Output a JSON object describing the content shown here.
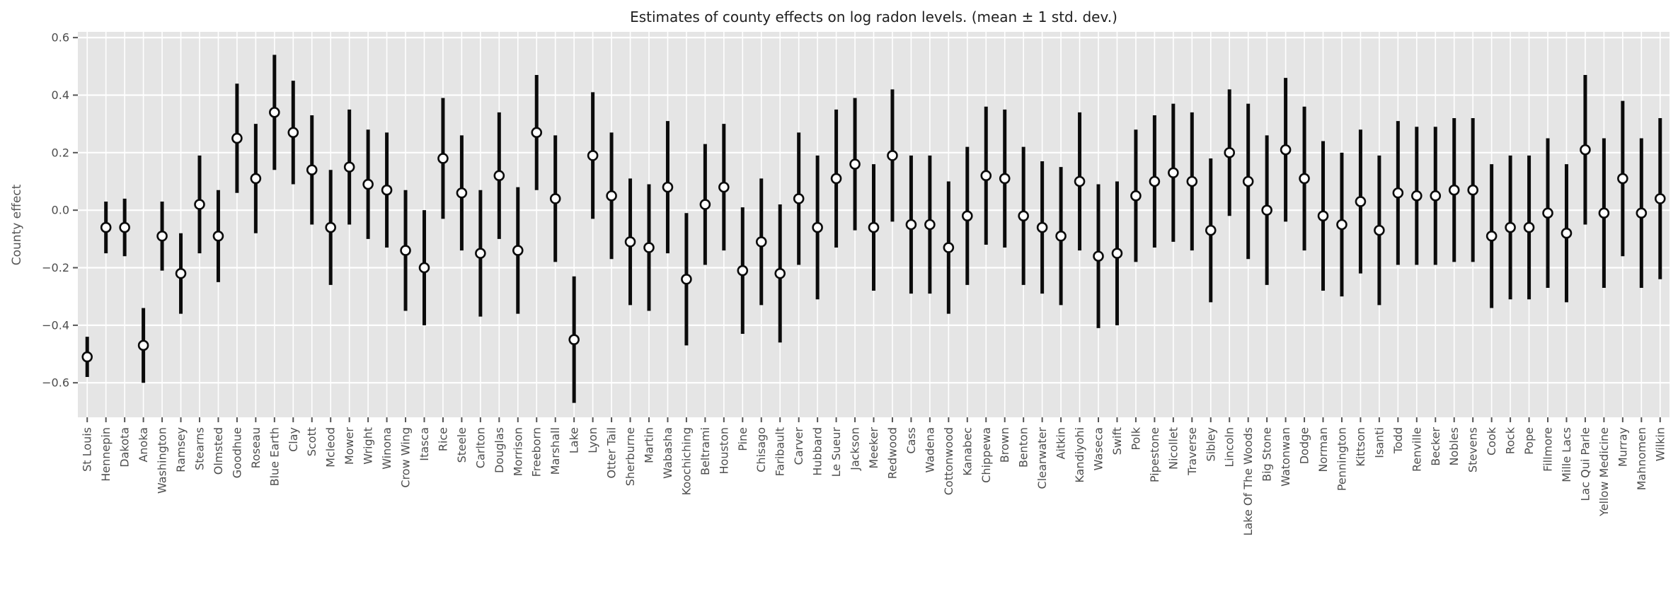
{
  "chart_data": {
    "type": "scatter",
    "title": "Estimates of county effects on log radon levels. (mean ± 1 std. dev.)",
    "xlabel": "",
    "ylabel": "County effect",
    "ylim": [
      -0.72,
      0.62
    ],
    "y_ticks": [
      -0.6,
      -0.4,
      -0.2,
      0.0,
      0.2,
      0.4,
      0.6
    ],
    "y_tick_labels": [
      "−0.6",
      "−0.4",
      "−0.2",
      "0.0",
      "0.2",
      "0.4",
      "0.6"
    ],
    "grid": true,
    "legend": false,
    "error_bars": "mean ± 1 std. dev.",
    "x_tick_rotation": 90,
    "categories": [
      "St Louis",
      "Hennepin",
      "Dakota",
      "Anoka",
      "Washington",
      "Ramsey",
      "Stearns",
      "Olmsted",
      "Goodhue",
      "Roseau",
      "Blue Earth",
      "Clay",
      "Scott",
      "Mcleod",
      "Mower",
      "Wright",
      "Winona",
      "Crow Wing",
      "Itasca",
      "Rice",
      "Steele",
      "Carlton",
      "Douglas",
      "Morrison",
      "Freeborn",
      "Marshall",
      "Lake",
      "Lyon",
      "Otter Tail",
      "Sherburne",
      "Martin",
      "Wabasha",
      "Koochiching",
      "Beltrami",
      "Houston",
      "Pine",
      "Chisago",
      "Faribault",
      "Carver",
      "Hubbard",
      "Le Sueur",
      "Jackson",
      "Meeker",
      "Redwood",
      "Cass",
      "Wadena",
      "Cottonwood",
      "Kanabec",
      "Chippewa",
      "Brown",
      "Benton",
      "Clearwater",
      "Aitkin",
      "Kandiyohi",
      "Waseca",
      "Swift",
      "Polk",
      "Pipestone",
      "Nicollet",
      "Traverse",
      "Sibley",
      "Lincoln",
      "Lake Of The Woods",
      "Big Stone",
      "Watonwan",
      "Dodge",
      "Norman",
      "Pennington",
      "Kittson",
      "Isanti",
      "Todd",
      "Renville",
      "Becker",
      "Nobles",
      "Stevens",
      "Cook",
      "Rock",
      "Pope",
      "Fillmore",
      "Mille Lacs",
      "Lac Qui Parle",
      "Yellow Medicine",
      "Murray",
      "Mahnomen",
      "Wilkin"
    ],
    "series": [
      {
        "name": "mean",
        "values": [
          -0.51,
          -0.06,
          -0.06,
          -0.47,
          -0.09,
          -0.22,
          0.02,
          -0.09,
          0.25,
          0.11,
          0.34,
          0.27,
          0.14,
          -0.06,
          0.15,
          0.09,
          0.07,
          -0.14,
          -0.2,
          0.18,
          0.06,
          -0.15,
          0.12,
          -0.14,
          0.27,
          0.04,
          -0.45,
          0.19,
          0.05,
          -0.11,
          -0.13,
          0.08,
          -0.24,
          0.02,
          0.08,
          -0.21,
          -0.11,
          -0.22,
          0.04,
          -0.06,
          0.11,
          0.16,
          -0.06,
          0.19,
          -0.05,
          -0.05,
          -0.13,
          -0.02,
          0.12,
          0.11,
          -0.02,
          -0.06,
          -0.09,
          0.1,
          -0.16,
          -0.15,
          0.05,
          0.1,
          0.13,
          0.1,
          -0.07,
          0.2,
          0.1,
          0.0,
          0.21,
          0.11,
          -0.02,
          -0.05,
          0.03,
          -0.07,
          0.06,
          0.05,
          0.05,
          0.07,
          0.07,
          -0.09,
          -0.06,
          -0.06,
          -0.01,
          -0.08,
          0.21,
          -0.01,
          0.11,
          -0.01,
          0.04
        ]
      },
      {
        "name": "std_dev",
        "values": [
          0.07,
          0.09,
          0.1,
          0.13,
          0.12,
          0.14,
          0.17,
          0.16,
          0.19,
          0.19,
          0.2,
          0.18,
          0.19,
          0.2,
          0.2,
          0.19,
          0.2,
          0.21,
          0.2,
          0.21,
          0.2,
          0.22,
          0.22,
          0.22,
          0.2,
          0.22,
          0.22,
          0.22,
          0.22,
          0.22,
          0.22,
          0.23,
          0.23,
          0.21,
          0.22,
          0.22,
          0.22,
          0.24,
          0.23,
          0.25,
          0.24,
          0.23,
          0.22,
          0.23,
          0.24,
          0.24,
          0.23,
          0.24,
          0.24,
          0.24,
          0.24,
          0.23,
          0.24,
          0.24,
          0.25,
          0.25,
          0.23,
          0.23,
          0.24,
          0.24,
          0.25,
          0.22,
          0.27,
          0.26,
          0.25,
          0.25,
          0.26,
          0.25,
          0.25,
          0.26,
          0.25,
          0.24,
          0.24,
          0.25,
          0.25,
          0.25,
          0.25,
          0.25,
          0.26,
          0.24,
          0.26,
          0.26,
          0.27,
          0.26,
          0.28
        ]
      }
    ],
    "style": {
      "plot_bg": "#e5e5e5",
      "grid_color": "#ffffff",
      "bar_color": "#0b0b0b",
      "marker_edge": "#0b0b0b",
      "marker_face": "#ffffff",
      "tick_color": "#555555",
      "tick_label_color": "#4d4d4d",
      "title_color": "#1f1f1f"
    }
  }
}
